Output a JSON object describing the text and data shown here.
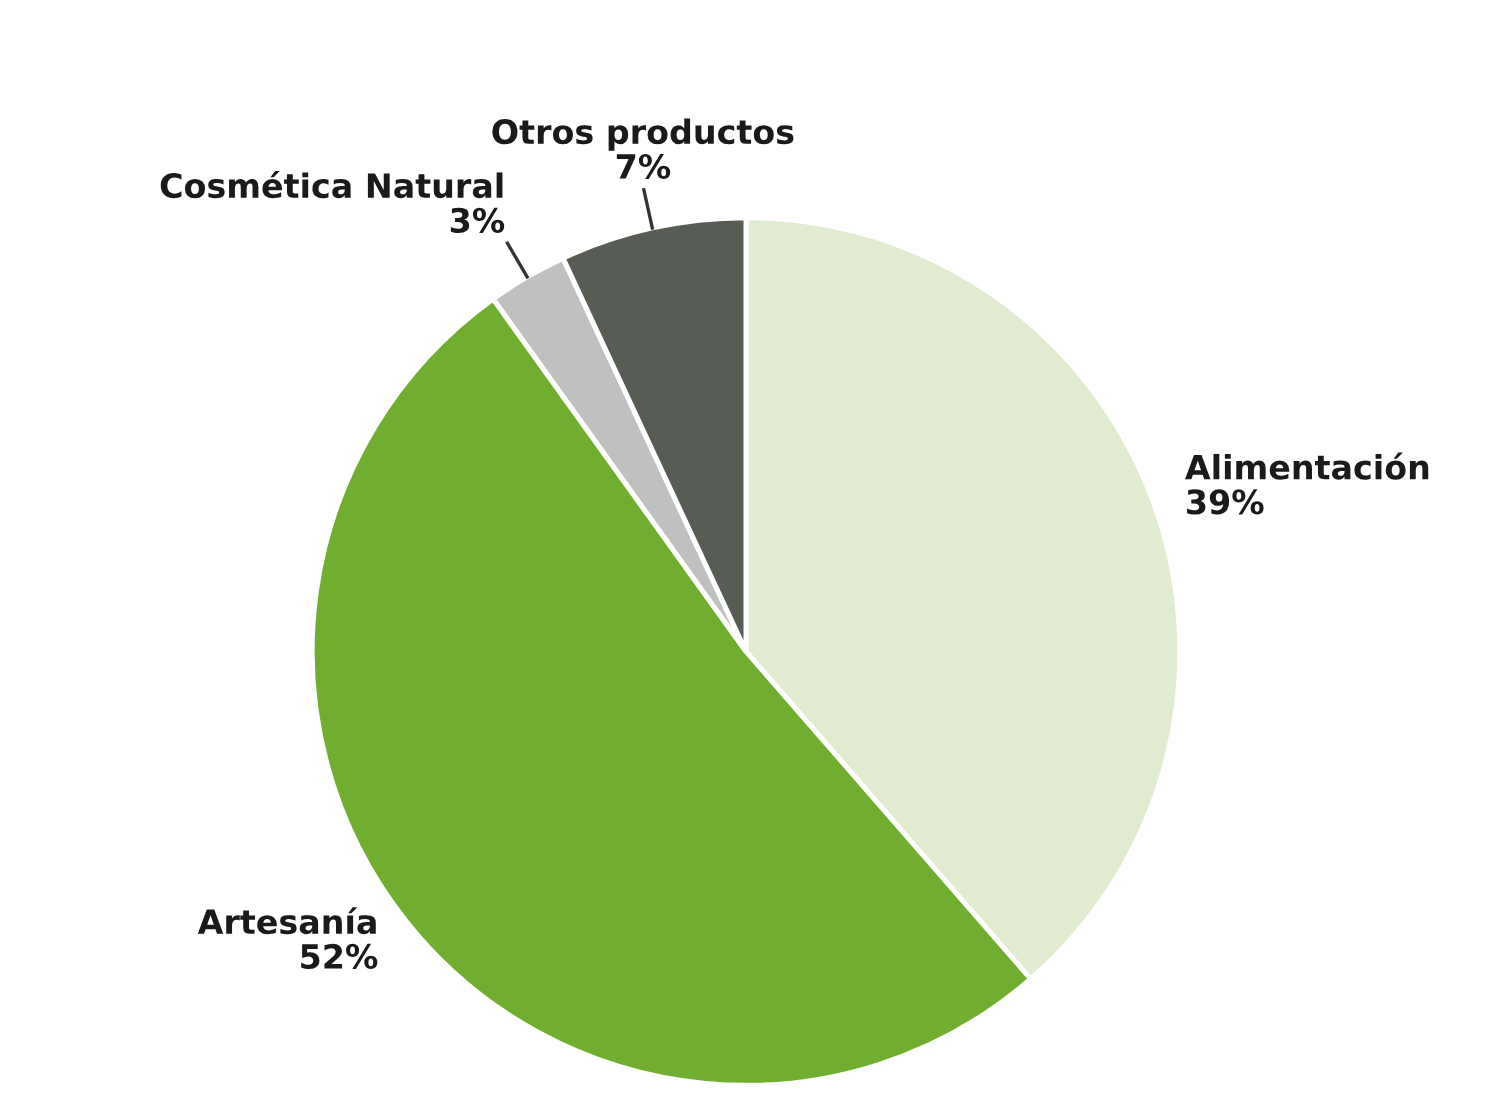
{
  "chart_data": {
    "type": "pie",
    "categories": [
      "Alimentación",
      "Artesanía",
      "Cosmética Natural",
      "Otros productos"
    ],
    "values": [
      39,
      52,
      3,
      7
    ],
    "value_labels": [
      "39%",
      "52%",
      "3%",
      "7%"
    ],
    "colors": [
      "#e0ebd0",
      "#6fae2e",
      "#bfc0c0",
      "#575d55"
    ]
  }
}
